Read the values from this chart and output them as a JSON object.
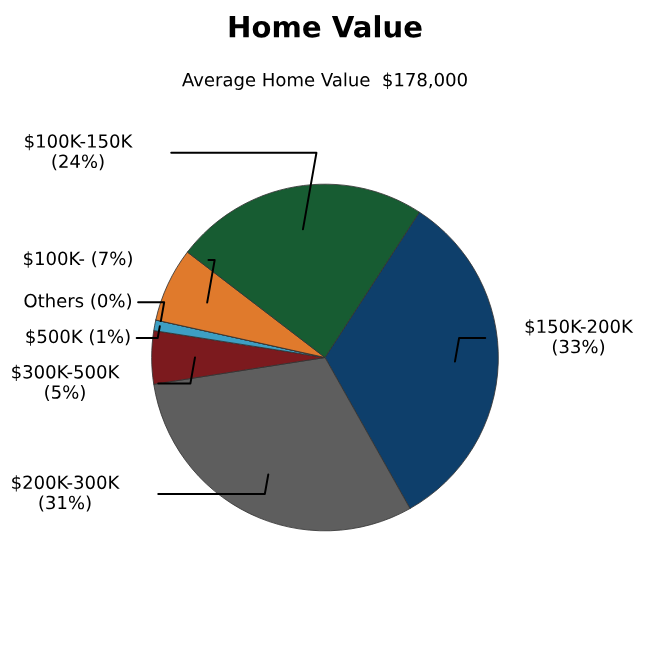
{
  "chart_data": {
    "type": "pie",
    "title": "Home Value",
    "subtitle": "Average Home Value  $178,000",
    "categories": [
      "$150K-200K",
      "$200K-300K",
      "$300K-500K",
      "$500K",
      "Others",
      "$100K-",
      "$100K-150K"
    ],
    "values": [
      33,
      31,
      5,
      1,
      0,
      7,
      24
    ],
    "value_labels": [
      "(33%)",
      "(31%)",
      "(5%)",
      "(1%)",
      "(0%)",
      "(7%)",
      "(24%)"
    ],
    "colors": [
      "#0e3f6b",
      "#5e5e5e",
      "#7c1a1e",
      "#3d9fc4",
      "#9aa6b0",
      "#e07a2c",
      "#175c32"
    ]
  }
}
